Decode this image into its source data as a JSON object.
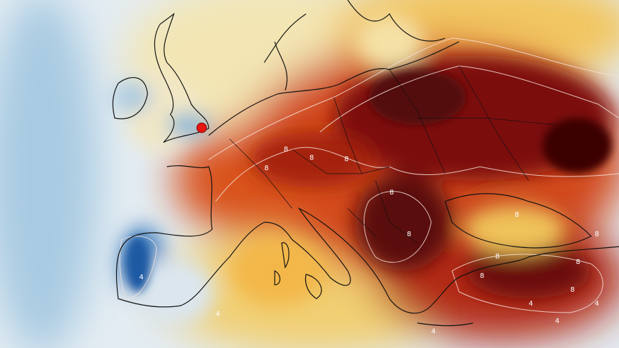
{
  "map": {
    "kind": "temperature-anomaly-map",
    "colors": {
      "cold_strong": "#1f5fa8",
      "cold": "#8fbcdc",
      "cold_light": "#dde9f1",
      "neutral": "#f3ecd0",
      "warm_light": "#f3d27a",
      "warm": "#eb9a2a",
      "hot": "#d2451a",
      "very_hot": "#9c1a0f",
      "extreme": "#4a0508",
      "coastline": "#111111",
      "contour": "#f4e6e0",
      "marker": "#e8140f"
    },
    "marker": {
      "icon": "red-dot-marker"
    },
    "contour_labels": [
      "8",
      "8",
      "8",
      "8",
      "8",
      "8",
      "8",
      "8",
      "8",
      "8",
      "4",
      "4",
      "4",
      "4",
      "4",
      "4",
      "8",
      "8"
    ]
  }
}
